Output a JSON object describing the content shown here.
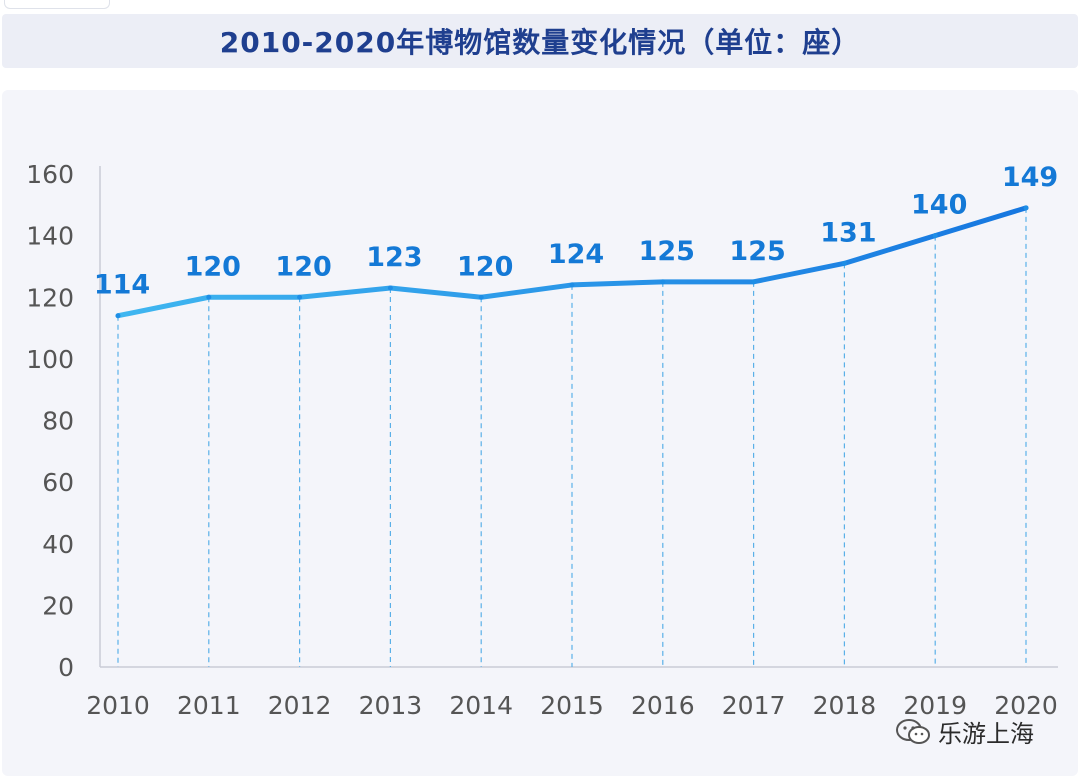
{
  "title": "2010-2020年博物馆数量变化情况（单位：座）",
  "watermark": "乐游上海",
  "colors": {
    "line": "#1e8ee6",
    "line_light": "#6fc4f0",
    "label": "#1479d6",
    "axis_text": "#555555",
    "grid_drop": "#5ab0e8",
    "title": "#1f3f8f"
  },
  "chart_data": {
    "type": "line",
    "title": "2010-2020年博物馆数量变化情况（单位：座）",
    "xlabel": "",
    "ylabel": "",
    "categories": [
      "2010",
      "2011",
      "2012",
      "2013",
      "2014",
      "2015",
      "2016",
      "2017",
      "2018",
      "2019",
      "2020"
    ],
    "series": [
      {
        "values": [
          114,
          120,
          120,
          123,
          120,
          124,
          125,
          125,
          131,
          140,
          149
        ]
      }
    ],
    "yticks": [
      0,
      20,
      40,
      60,
      80,
      100,
      120,
      140,
      160
    ],
    "ylim": [
      0,
      160
    ],
    "grid": false,
    "legend": "none",
    "data_labels": true
  }
}
